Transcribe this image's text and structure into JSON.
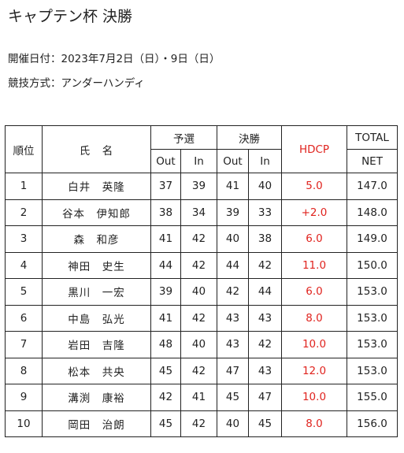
{
  "page": {
    "title": "キャプテン杯 決勝",
    "date_line": "開催日付：2023年7月2日（日）・9日（日）",
    "format_line": "競技方式：アンダーハンディ"
  },
  "table": {
    "headers": {
      "rank": "順位",
      "name": "氏　名",
      "qualifying": "予選",
      "final": "決勝",
      "out": "Out",
      "in": "In",
      "hdcp": "HDCP",
      "total": "TOTAL",
      "net": "NET"
    },
    "rows": [
      {
        "rank": "1",
        "name": "白井　英隆",
        "q_out": "37",
        "q_in": "39",
        "f_out": "41",
        "f_in": "40",
        "hdcp": "5.0",
        "net": "147.0"
      },
      {
        "rank": "2",
        "name": "谷本　伊知郎",
        "q_out": "38",
        "q_in": "34",
        "f_out": "39",
        "f_in": "33",
        "hdcp": "+2.0",
        "net": "148.0"
      },
      {
        "rank": "3",
        "name": "森　和彦",
        "q_out": "41",
        "q_in": "42",
        "f_out": "40",
        "f_in": "38",
        "hdcp": "6.0",
        "net": "149.0"
      },
      {
        "rank": "4",
        "name": "神田　史生",
        "q_out": "44",
        "q_in": "42",
        "f_out": "44",
        "f_in": "42",
        "hdcp": "11.0",
        "net": "150.0"
      },
      {
        "rank": "5",
        "name": "黒川　一宏",
        "q_out": "39",
        "q_in": "40",
        "f_out": "42",
        "f_in": "44",
        "hdcp": "6.0",
        "net": "153.0"
      },
      {
        "rank": "6",
        "name": "中島　弘光",
        "q_out": "41",
        "q_in": "42",
        "f_out": "43",
        "f_in": "43",
        "hdcp": "8.0",
        "net": "153.0"
      },
      {
        "rank": "7",
        "name": "岩田　吉隆",
        "q_out": "48",
        "q_in": "40",
        "f_out": "43",
        "f_in": "42",
        "hdcp": "10.0",
        "net": "153.0"
      },
      {
        "rank": "8",
        "name": "松本　共央",
        "q_out": "45",
        "q_in": "42",
        "f_out": "47",
        "f_in": "43",
        "hdcp": "12.0",
        "net": "153.0"
      },
      {
        "rank": "9",
        "name": "溝渕　康裕",
        "q_out": "42",
        "q_in": "41",
        "f_out": "45",
        "f_in": "47",
        "hdcp": "10.0",
        "net": "155.0"
      },
      {
        "rank": "10",
        "name": "岡田　治朗",
        "q_out": "45",
        "q_in": "42",
        "f_out": "40",
        "f_in": "45",
        "hdcp": "8.0",
        "net": "156.0"
      }
    ]
  },
  "colors": {
    "hdcp_text": "#e0231e",
    "text": "#222222",
    "border": "#222222"
  }
}
